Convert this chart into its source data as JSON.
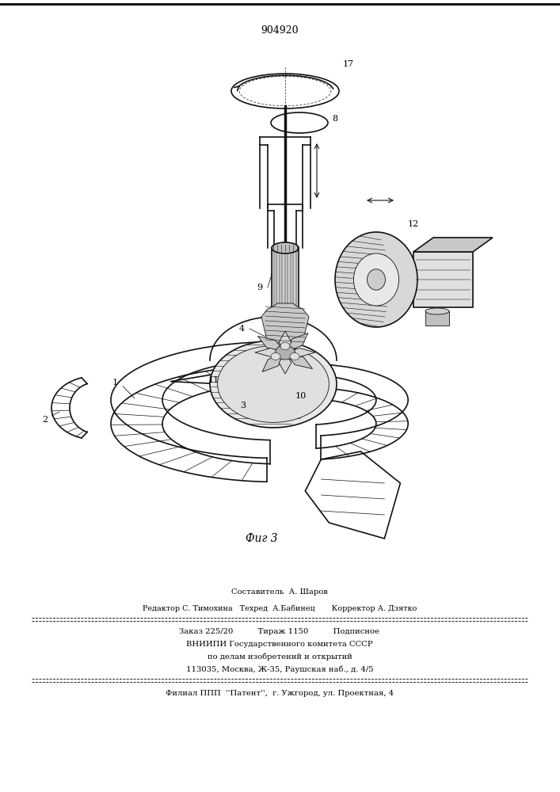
{
  "patent_number": "904920",
  "fig_caption": "Фиг 3",
  "bg_color": "#ffffff",
  "text_color": "#000000",
  "line_color": "#000000",
  "drawing_color": "#111111",
  "staff_line1_text": "Составитель  А. Шаров",
  "staff_line2_text": "Редактор С. Тимохина   Техред  А.Бабинец       Корректор А. Дзятко",
  "info_line1": "Заказ 225/20          Тираж 1150          Подписное",
  "info_line2": "ВНИИПИ Государственного комитета СССР",
  "info_line3": "по делам изобретений и открытий",
  "info_line4": "113035, Москва, Ж-35, Раушская наб., д. 4/5",
  "bottom_line": "Филиал ППП  ''Патент'',  г. Ужгород, ул. Проектная, 4"
}
